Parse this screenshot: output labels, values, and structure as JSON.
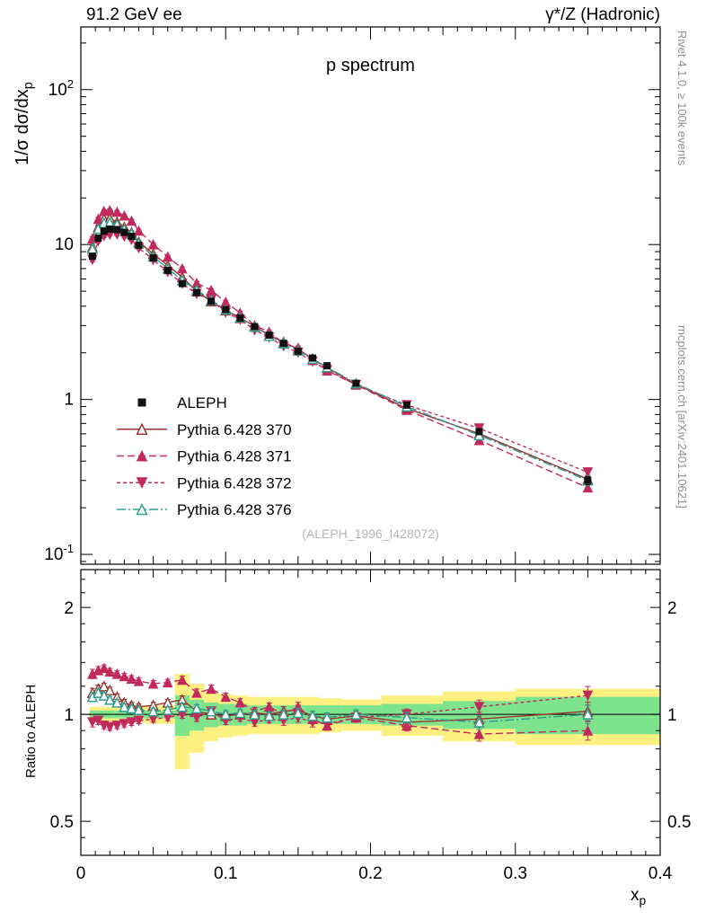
{
  "header": {
    "left": "91.2 GeV ee",
    "right": "γ*/Z (Hadronic)"
  },
  "side_notes": {
    "top_right": "Rivet 4.1.0, ≥ 100k events",
    "bottom_right": "mcplots.cern.ch [arXiv:2401.10621]"
  },
  "chart_data": {
    "type": "line",
    "title": "p spectrum",
    "watermark": "(ALEPH_1996_I428072)",
    "xlabel": {
      "text": "x",
      "sub": "p"
    },
    "ylabel_main": {
      "text": "1/σ  dσ/dx",
      "sub": "p"
    },
    "ylabel_ratio": "Ratio to ALEPH",
    "x_axis": {
      "min": 0,
      "max": 0.4,
      "major": [
        0,
        0.1,
        0.2,
        0.3,
        0.4
      ],
      "labels": [
        "0",
        "0.1",
        "0.2",
        "0.3",
        "0.4"
      ]
    },
    "y_axis_main": {
      "scale": "log",
      "min": 0.0864,
      "max": 253.9,
      "major": [
        {
          "v": 0.1,
          "m": "10",
          "e": "-1"
        },
        {
          "v": 1,
          "m": "1"
        },
        {
          "v": 10,
          "m": "10"
        },
        {
          "v": 100,
          "m": "10",
          "e": "2"
        }
      ]
    },
    "y_axis_ratio": {
      "scale": "log",
      "min": 0.401,
      "max": 2.556,
      "major": [
        {
          "v": 0.5,
          "m": "0.5"
        },
        {
          "v": 1,
          "m": "1"
        },
        {
          "v": 2,
          "m": "2"
        }
      ],
      "minor": [
        0.45,
        0.6,
        0.7,
        0.8,
        0.9,
        1.2,
        1.4,
        1.6,
        1.8,
        2.2,
        2.4
      ]
    },
    "x": [
      0.008,
      0.012,
      0.016,
      0.02,
      0.025,
      0.03,
      0.035,
      0.04,
      0.05,
      0.06,
      0.07,
      0.08,
      0.09,
      0.1,
      0.11,
      0.12,
      0.13,
      0.14,
      0.15,
      0.16,
      0.17,
      0.19,
      0.225,
      0.275,
      0.35
    ],
    "xedges": [
      0.006,
      0.01,
      0.014,
      0.018,
      0.0225,
      0.0275,
      0.0325,
      0.0375,
      0.045,
      0.055,
      0.065,
      0.075,
      0.085,
      0.095,
      0.105,
      0.115,
      0.125,
      0.135,
      0.145,
      0.155,
      0.165,
      0.18,
      0.2075,
      0.25,
      0.3,
      0.4
    ],
    "stat_err_frac": [
      0.03,
      0.025,
      0.02,
      0.02,
      0.02,
      0.02,
      0.02,
      0.02,
      0.02,
      0.02,
      0.025,
      0.025,
      0.025,
      0.025,
      0.025,
      0.025,
      0.025,
      0.03,
      0.03,
      0.03,
      0.03,
      0.03,
      0.035,
      0.045,
      0.06
    ],
    "reference": {
      "name": "ALEPH",
      "color": "#111111",
      "marker": "square",
      "values": [
        8.4,
        11.0,
        12.2,
        12.6,
        12.5,
        12.0,
        11.3,
        9.9,
        8.2,
        6.8,
        5.6,
        4.9,
        4.3,
        3.8,
        3.35,
        2.95,
        2.6,
        2.3,
        2.05,
        1.85,
        1.65,
        1.27,
        0.92,
        0.62,
        0.3
      ]
    },
    "series": [
      {
        "name": "Pythia 6.428 370",
        "color": "#99342e",
        "line": "solid",
        "marker": "triangle-open",
        "ratio": [
          1.15,
          1.18,
          1.2,
          1.17,
          1.12,
          1.08,
          1.06,
          1.05,
          1.06,
          1.08,
          1.1,
          1.02,
          1.0,
          0.99,
          1.0,
          1.01,
          1.0,
          1.02,
          1.03,
          0.99,
          0.97,
          0.99,
          0.95,
          0.97,
          1.02
        ]
      },
      {
        "name": "Pythia 6.428 371",
        "color": "#c22a5b",
        "line": "dash",
        "marker": "triangle-up",
        "ratio": [
          1.3,
          1.33,
          1.35,
          1.32,
          1.3,
          1.28,
          1.26,
          1.24,
          1.22,
          1.23,
          1.25,
          1.15,
          1.18,
          1.12,
          1.08,
          1.02,
          1.05,
          1.0,
          1.05,
          0.97,
          0.93,
          0.98,
          0.93,
          0.88,
          0.9
        ]
      },
      {
        "name": "Pythia 6.428 372",
        "color": "#c22a5b",
        "line": "dash2",
        "marker": "triangle-down",
        "ratio": [
          0.95,
          0.96,
          0.93,
          0.92,
          0.93,
          0.94,
          0.95,
          0.96,
          0.97,
          0.98,
          1.0,
          0.98,
          1.02,
          0.96,
          0.98,
          0.95,
          0.97,
          0.96,
          0.98,
          0.95,
          0.94,
          0.98,
          1.0,
          1.05,
          1.13
        ]
      },
      {
        "name": "Pythia 6.428 376",
        "color": "#2f9d8e",
        "line": "dashdot",
        "marker": "triangle-open",
        "ratio": [
          1.12,
          1.15,
          1.13,
          1.1,
          1.08,
          1.05,
          1.04,
          1.03,
          1.02,
          1.03,
          1.05,
          1.04,
          1.02,
          1.0,
          1.01,
          1.0,
          0.99,
          1.0,
          1.01,
          0.99,
          0.98,
          1.0,
          0.98,
          0.95,
          1.0
        ]
      }
    ],
    "bands": {
      "yellow_color": "#fbf080",
      "green_color": "#7de38d",
      "yellow_lo": [
        0.95,
        0.95,
        0.95,
        0.95,
        0.95,
        0.95,
        0.95,
        0.95,
        0.94,
        0.94,
        0.7,
        0.78,
        0.84,
        0.86,
        0.87,
        0.88,
        0.88,
        0.88,
        0.88,
        0.88,
        0.89,
        0.9,
        0.87,
        0.84,
        0.82
      ],
      "yellow_hi": [
        1.05,
        1.05,
        1.05,
        1.05,
        1.05,
        1.05,
        1.05,
        1.05,
        1.06,
        1.06,
        1.3,
        1.22,
        1.16,
        1.14,
        1.13,
        1.12,
        1.12,
        1.12,
        1.12,
        1.12,
        1.11,
        1.1,
        1.13,
        1.16,
        1.18
      ],
      "green_lo": [
        0.975,
        0.975,
        0.975,
        0.975,
        0.975,
        0.975,
        0.975,
        0.975,
        0.975,
        0.975,
        0.87,
        0.9,
        0.92,
        0.93,
        0.93,
        0.94,
        0.94,
        0.94,
        0.94,
        0.94,
        0.94,
        0.94,
        0.93,
        0.91,
        0.88
      ],
      "green_hi": [
        1.025,
        1.025,
        1.025,
        1.025,
        1.025,
        1.025,
        1.025,
        1.025,
        1.025,
        1.025,
        1.13,
        1.1,
        1.08,
        1.07,
        1.07,
        1.06,
        1.06,
        1.06,
        1.06,
        1.06,
        1.06,
        1.06,
        1.07,
        1.09,
        1.12
      ]
    }
  }
}
